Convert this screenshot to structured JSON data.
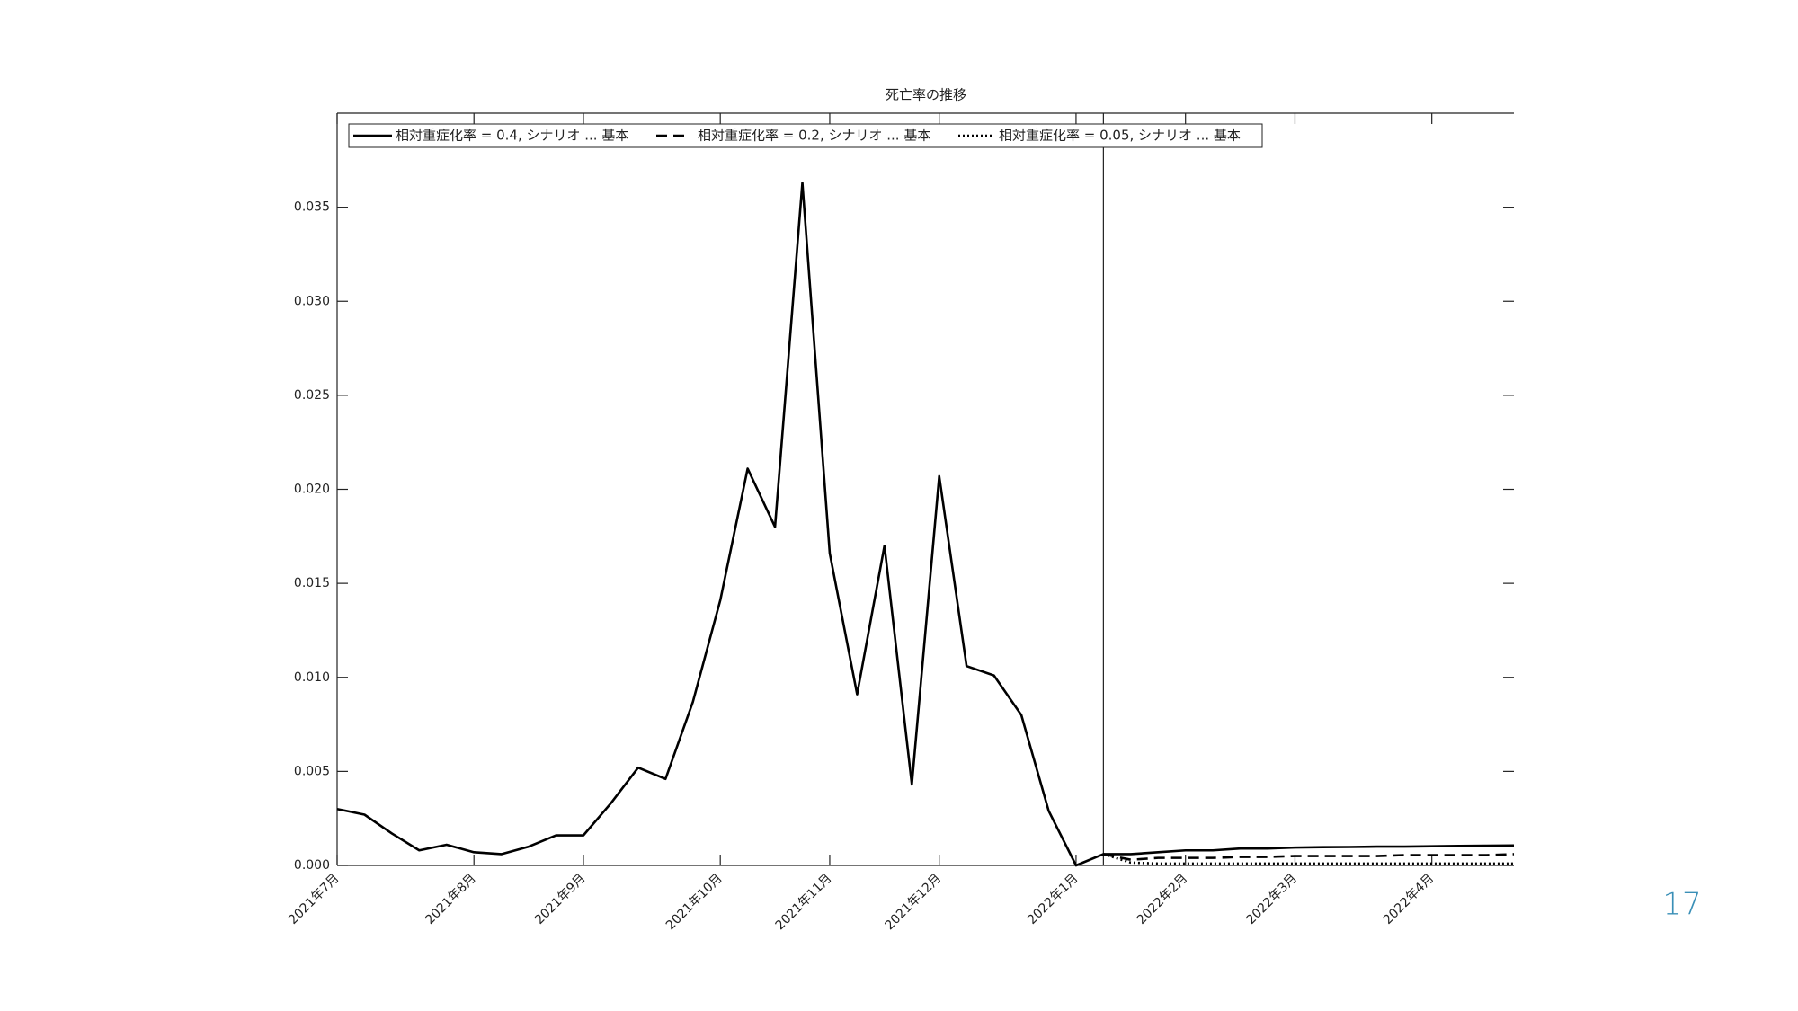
{
  "chart_data": {
    "type": "line",
    "title": "死亡率の推移",
    "categories": [
      "2021年7月",
      null,
      null,
      null,
      null,
      "2021年8月",
      null,
      null,
      null,
      "2021年9月",
      null,
      null,
      null,
      null,
      "2021年10月",
      null,
      null,
      null,
      "2021年11月",
      null,
      null,
      null,
      "2021年12月",
      null,
      null,
      null,
      null,
      "2022年1月",
      null,
      null,
      null,
      "2022年2月",
      null,
      null,
      null,
      "2022年3月",
      null,
      null,
      null,
      null,
      "2022年4月",
      null,
      null,
      null
    ],
    "series": [
      {
        "name": "相対重症化率 = 0.4, シナリオ ... 基本",
        "color": "#000000",
        "dash": "solid",
        "values": [
          0.003,
          0.0027,
          0.0017,
          0.0008,
          0.0011,
          0.0007,
          0.0006,
          0.001,
          0.0016,
          0.0016,
          0.0033,
          0.0052,
          0.0046,
          0.0087,
          0.0141,
          0.0211,
          0.018,
          0.0363,
          0.0166,
          0.0091,
          0.017,
          0.0043,
          0.0207,
          0.0106,
          0.0101,
          0.008,
          0.0029,
          0.0,
          0.0006,
          0.0006,
          0.0007,
          0.0008,
          0.0008,
          0.0009,
          0.0009,
          0.00095,
          0.00097,
          0.00098,
          0.001,
          0.001,
          0.00102,
          0.00104,
          0.00105,
          0.00106
        ]
      },
      {
        "name": "相対重症化率 = 0.2, シナリオ ... 基本",
        "color": "#000000",
        "dash": "dashed",
        "values": [
          null,
          null,
          null,
          null,
          null,
          null,
          null,
          null,
          null,
          null,
          null,
          null,
          null,
          null,
          null,
          null,
          null,
          null,
          null,
          null,
          null,
          null,
          null,
          null,
          null,
          null,
          null,
          null,
          0.0006,
          0.0003,
          0.0004,
          0.0004,
          0.0004,
          0.00045,
          0.00045,
          0.0005,
          0.0005,
          0.0005,
          0.0005,
          0.00055,
          0.00055,
          0.00055,
          0.00055,
          0.0006
        ]
      },
      {
        "name": "相対重症化率 = 0.05, シナリオ ... 基本",
        "color": "#000000",
        "dash": "dotted",
        "values": [
          null,
          null,
          null,
          null,
          null,
          null,
          null,
          null,
          null,
          null,
          null,
          null,
          null,
          null,
          null,
          null,
          null,
          null,
          null,
          null,
          null,
          null,
          null,
          null,
          null,
          null,
          null,
          null,
          0.0006,
          0.00015,
          0.0001,
          0.0001,
          0.0001,
          0.0001,
          0.0001,
          0.0001,
          0.0001,
          0.0001,
          0.0001,
          0.0001,
          0.0001,
          0.0001,
          0.0001,
          0.0001
        ]
      }
    ],
    "ylim": [
      0,
      0.04
    ],
    "yticks": [
      {
        "value": 0,
        "label": "0.000"
      },
      {
        "value": 0.005,
        "label": "0.005"
      },
      {
        "value": 0.01,
        "label": "0.010"
      },
      {
        "value": 0.015,
        "label": "0.015"
      },
      {
        "value": 0.02,
        "label": "0.020"
      },
      {
        "value": 0.025,
        "label": "0.025"
      },
      {
        "value": 0.03,
        "label": "0.030"
      },
      {
        "value": 0.035,
        "label": "0.035"
      }
    ],
    "grid": false,
    "legend": "top-left"
  },
  "slide": {
    "page_number": "17"
  }
}
